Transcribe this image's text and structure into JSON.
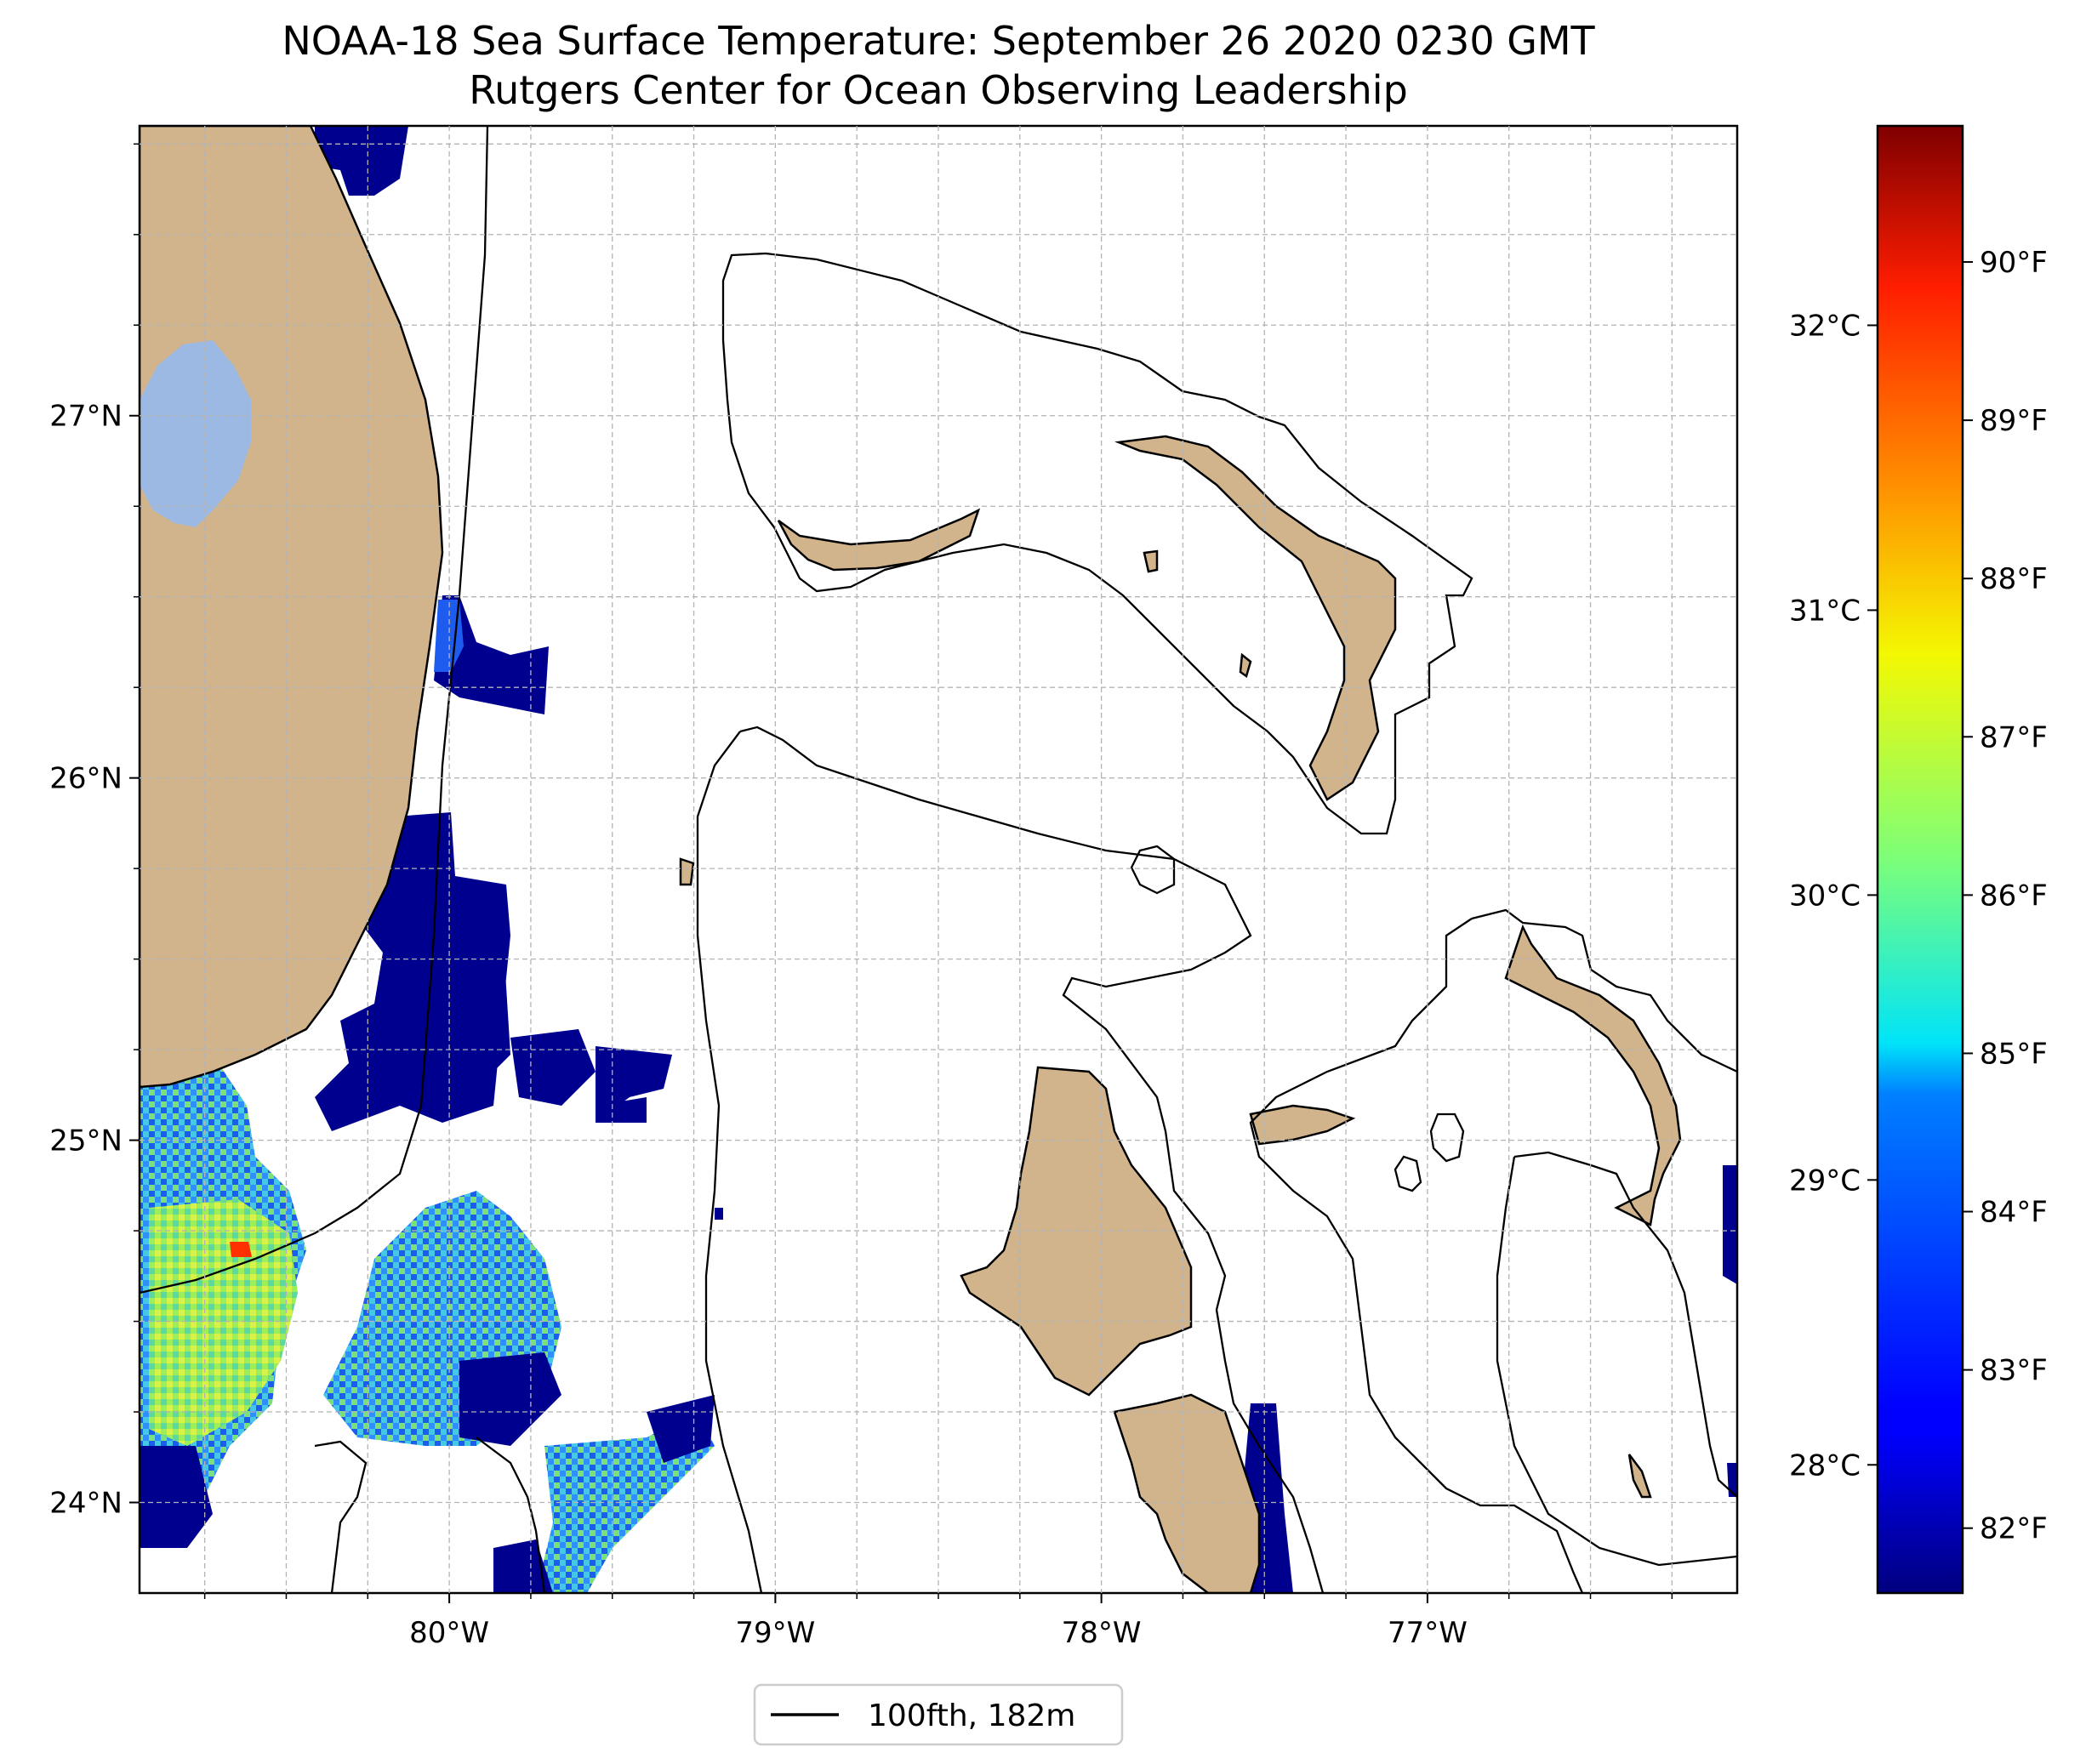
{
  "title": {
    "line1": "NOAA-18 Sea Surface Temperature: September 26 2020 0230 GMT",
    "line2": "Rutgers Center for Ocean Observing Leadership"
  },
  "map": {
    "lat_range": [
      23.75,
      27.8
    ],
    "lon_range": [
      -80.95,
      -76.05
    ],
    "lat_ticks": [
      {
        "value": 27,
        "label": "27°N"
      },
      {
        "value": 26,
        "label": "26°N"
      },
      {
        "value": 25,
        "label": "25°N"
      },
      {
        "value": 24,
        "label": "24°N"
      }
    ],
    "lon_ticks": [
      {
        "value": -80,
        "label": "80°W"
      },
      {
        "value": -79,
        "label": "79°W"
      },
      {
        "value": -78,
        "label": "78°W"
      },
      {
        "value": -77,
        "label": "77°W"
      }
    ],
    "grid": true,
    "land_color": "#D2B48C",
    "lake_color": "#9BB9E3",
    "legend": {
      "label": "100fth, 182m",
      "placement": "bottom-center"
    }
  },
  "colorbar": {
    "colormap": "jet",
    "celsius_range": [
      27.55,
      32.7
    ],
    "celsius_ticks": [
      {
        "value": 32,
        "label": "32°C"
      },
      {
        "value": 31,
        "label": "31°C"
      },
      {
        "value": 30,
        "label": "30°C"
      },
      {
        "value": 29,
        "label": "29°C"
      },
      {
        "value": 28,
        "label": "28°C"
      }
    ],
    "fahrenheit_ticks": [
      {
        "value": 90,
        "label": "90°F"
      },
      {
        "value": 89,
        "label": "89°F"
      },
      {
        "value": 88,
        "label": "88°F"
      },
      {
        "value": 87,
        "label": "87°F"
      },
      {
        "value": 86,
        "label": "86°F"
      },
      {
        "value": 85,
        "label": "85°F"
      },
      {
        "value": 84,
        "label": "84°F"
      },
      {
        "value": 83,
        "label": "83°F"
      },
      {
        "value": 82,
        "label": "82°F"
      }
    ]
  }
}
